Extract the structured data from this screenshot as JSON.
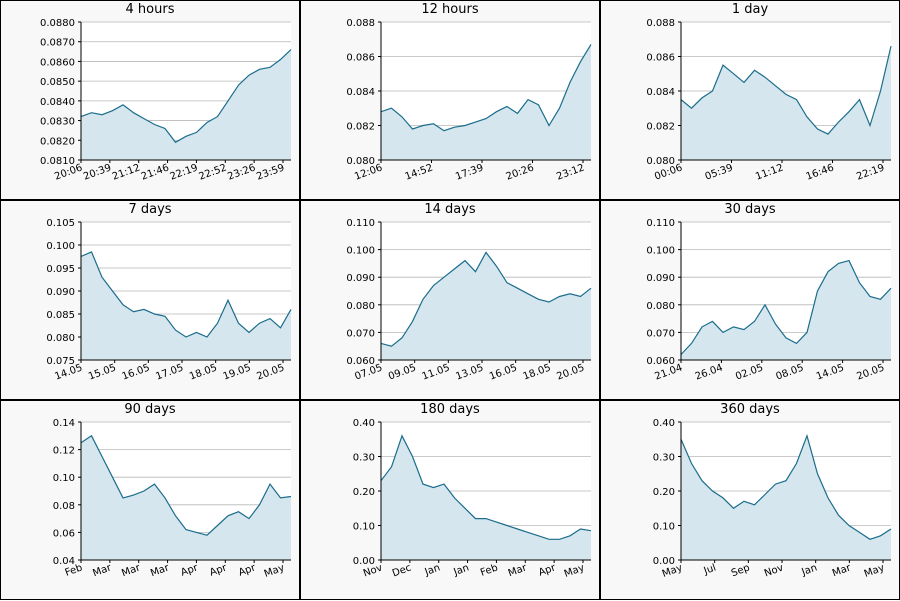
{
  "style": {
    "line_color": "#1a6d8c",
    "fill_color": "#d6e6ee",
    "grid_color": "#b8b8b8",
    "plot_bg": "#ffffff",
    "panel_bg": "#f8f8f8"
  },
  "chart_data": [
    {
      "type": "area",
      "title": "4 hours",
      "ylim": [
        0.081,
        0.088
      ],
      "yticks": [
        "0.0810",
        "0.0820",
        "0.0830",
        "0.0840",
        "0.0850",
        "0.0860",
        "0.0870",
        "0.0880"
      ],
      "xticks": [
        "20:06",
        "20:39",
        "21:12",
        "21:46",
        "22:19",
        "22:52",
        "23:26",
        "23:59"
      ],
      "x": [
        0,
        0.05,
        0.1,
        0.15,
        0.2,
        0.25,
        0.3,
        0.35,
        0.4,
        0.45,
        0.5,
        0.55,
        0.6,
        0.65,
        0.7,
        0.75,
        0.8,
        0.85,
        0.9,
        0.95,
        1
      ],
      "values": [
        0.0832,
        0.0834,
        0.0833,
        0.0835,
        0.0838,
        0.0834,
        0.0831,
        0.0828,
        0.0826,
        0.0819,
        0.0822,
        0.0824,
        0.0829,
        0.0832,
        0.084,
        0.0848,
        0.0853,
        0.0856,
        0.0857,
        0.0861,
        0.0866
      ]
    },
    {
      "type": "area",
      "title": "12 hours",
      "ylim": [
        0.08,
        0.088
      ],
      "yticks": [
        "0.080",
        "0.082",
        "0.084",
        "0.086",
        "0.088"
      ],
      "xticks": [
        "12:06",
        "14:52",
        "17:39",
        "20:26",
        "23:12"
      ],
      "x": [
        0,
        0.05,
        0.1,
        0.15,
        0.2,
        0.25,
        0.3,
        0.35,
        0.4,
        0.45,
        0.5,
        0.55,
        0.6,
        0.65,
        0.7,
        0.75,
        0.8,
        0.85,
        0.9,
        0.95,
        1
      ],
      "values": [
        0.0828,
        0.083,
        0.0825,
        0.0818,
        0.082,
        0.0821,
        0.0817,
        0.0819,
        0.082,
        0.0822,
        0.0824,
        0.0828,
        0.0831,
        0.0827,
        0.0835,
        0.0832,
        0.082,
        0.083,
        0.0845,
        0.0857,
        0.0867
      ]
    },
    {
      "type": "area",
      "title": "1 day",
      "ylim": [
        0.08,
        0.088
      ],
      "yticks": [
        "0.080",
        "0.082",
        "0.084",
        "0.086",
        "0.088"
      ],
      "xticks": [
        "00:06",
        "05:39",
        "11:12",
        "16:46",
        "22:19"
      ],
      "x": [
        0,
        0.05,
        0.1,
        0.15,
        0.2,
        0.25,
        0.3,
        0.35,
        0.4,
        0.45,
        0.5,
        0.55,
        0.6,
        0.65,
        0.7,
        0.75,
        0.8,
        0.85,
        0.9,
        0.95,
        1
      ],
      "values": [
        0.0835,
        0.083,
        0.0836,
        0.084,
        0.0855,
        0.085,
        0.0845,
        0.0852,
        0.0848,
        0.0843,
        0.0838,
        0.0835,
        0.0825,
        0.0818,
        0.0815,
        0.0822,
        0.0828,
        0.0835,
        0.082,
        0.084,
        0.0866
      ]
    },
    {
      "type": "area",
      "title": "7 days",
      "ylim": [
        0.075,
        0.105
      ],
      "yticks": [
        "0.075",
        "0.080",
        "0.085",
        "0.090",
        "0.095",
        "0.100",
        "0.105"
      ],
      "xticks": [
        "14.05",
        "15.05",
        "16.05",
        "17.05",
        "18.05",
        "19.05",
        "20.05"
      ],
      "x": [
        0,
        0.05,
        0.1,
        0.15,
        0.2,
        0.25,
        0.3,
        0.35,
        0.4,
        0.45,
        0.5,
        0.55,
        0.6,
        0.65,
        0.7,
        0.75,
        0.8,
        0.85,
        0.9,
        0.95,
        1
      ],
      "values": [
        0.0975,
        0.0985,
        0.093,
        0.09,
        0.087,
        0.0855,
        0.086,
        0.085,
        0.0845,
        0.0815,
        0.08,
        0.081,
        0.08,
        0.083,
        0.088,
        0.083,
        0.081,
        0.083,
        0.084,
        0.082,
        0.086
      ]
    },
    {
      "type": "area",
      "title": "14 days",
      "ylim": [
        0.06,
        0.11
      ],
      "yticks": [
        "0.060",
        "0.070",
        "0.080",
        "0.090",
        "0.100",
        "0.110"
      ],
      "xticks": [
        "07.05",
        "09.05",
        "11.05",
        "13.05",
        "16.05",
        "18.05",
        "20.05"
      ],
      "x": [
        0,
        0.05,
        0.1,
        0.15,
        0.2,
        0.25,
        0.3,
        0.35,
        0.4,
        0.45,
        0.5,
        0.55,
        0.6,
        0.65,
        0.7,
        0.75,
        0.8,
        0.85,
        0.9,
        0.95,
        1
      ],
      "values": [
        0.066,
        0.065,
        0.068,
        0.074,
        0.082,
        0.087,
        0.09,
        0.093,
        0.096,
        0.092,
        0.099,
        0.094,
        0.088,
        0.086,
        0.084,
        0.082,
        0.081,
        0.083,
        0.084,
        0.083,
        0.086
      ]
    },
    {
      "type": "area",
      "title": "30 days",
      "ylim": [
        0.06,
        0.11
      ],
      "yticks": [
        "0.060",
        "0.070",
        "0.080",
        "0.090",
        "0.100",
        "0.110"
      ],
      "xticks": [
        "21.04",
        "26.04",
        "02.05",
        "08.05",
        "14.05",
        "20.05"
      ],
      "x": [
        0,
        0.05,
        0.1,
        0.15,
        0.2,
        0.25,
        0.3,
        0.35,
        0.4,
        0.45,
        0.5,
        0.55,
        0.6,
        0.65,
        0.7,
        0.75,
        0.8,
        0.85,
        0.9,
        0.95,
        1
      ],
      "values": [
        0.062,
        0.066,
        0.072,
        0.074,
        0.07,
        0.072,
        0.071,
        0.074,
        0.08,
        0.073,
        0.068,
        0.066,
        0.07,
        0.085,
        0.092,
        0.095,
        0.096,
        0.088,
        0.083,
        0.082,
        0.086
      ]
    },
    {
      "type": "area",
      "title": "90 days",
      "ylim": [
        0.04,
        0.14
      ],
      "yticks": [
        "0.04",
        "0.06",
        "0.08",
        "0.10",
        "0.12",
        "0.14"
      ],
      "xticks": [
        "Feb",
        "Mar",
        "Mar",
        "Mar",
        "Apr",
        "Apr",
        "Apr",
        "May"
      ],
      "x": [
        0,
        0.05,
        0.1,
        0.15,
        0.2,
        0.25,
        0.3,
        0.35,
        0.4,
        0.45,
        0.5,
        0.55,
        0.6,
        0.65,
        0.7,
        0.75,
        0.8,
        0.85,
        0.9,
        0.95,
        1
      ],
      "values": [
        0.125,
        0.13,
        0.115,
        0.1,
        0.085,
        0.087,
        0.09,
        0.095,
        0.085,
        0.072,
        0.062,
        0.06,
        0.058,
        0.065,
        0.072,
        0.075,
        0.07,
        0.08,
        0.095,
        0.085,
        0.086
      ]
    },
    {
      "type": "area",
      "title": "180 days",
      "ylim": [
        0.0,
        0.4
      ],
      "yticks": [
        "0.00",
        "0.10",
        "0.20",
        "0.30",
        "0.40"
      ],
      "xticks": [
        "Nov",
        "Dec",
        "Jan",
        "Jan",
        "Feb",
        "Mar",
        "Apr",
        "May"
      ],
      "x": [
        0,
        0.05,
        0.1,
        0.15,
        0.2,
        0.25,
        0.3,
        0.35,
        0.4,
        0.45,
        0.5,
        0.55,
        0.6,
        0.65,
        0.7,
        0.75,
        0.8,
        0.85,
        0.9,
        0.95,
        1
      ],
      "values": [
        0.23,
        0.27,
        0.36,
        0.3,
        0.22,
        0.21,
        0.22,
        0.18,
        0.15,
        0.12,
        0.12,
        0.11,
        0.1,
        0.09,
        0.08,
        0.07,
        0.06,
        0.06,
        0.07,
        0.09,
        0.085
      ]
    },
    {
      "type": "area",
      "title": "360 days",
      "ylim": [
        0.0,
        0.4
      ],
      "yticks": [
        "0.00",
        "0.10",
        "0.20",
        "0.30",
        "0.40"
      ],
      "xticks": [
        "May",
        "Jul",
        "Sep",
        "Nov",
        "Jan",
        "Mar",
        "May"
      ],
      "x": [
        0,
        0.05,
        0.1,
        0.15,
        0.2,
        0.25,
        0.3,
        0.35,
        0.4,
        0.45,
        0.5,
        0.55,
        0.6,
        0.65,
        0.7,
        0.75,
        0.8,
        0.85,
        0.9,
        0.95,
        1
      ],
      "values": [
        0.35,
        0.28,
        0.23,
        0.2,
        0.18,
        0.15,
        0.17,
        0.16,
        0.19,
        0.22,
        0.23,
        0.28,
        0.36,
        0.25,
        0.18,
        0.13,
        0.1,
        0.08,
        0.06,
        0.07,
        0.09
      ]
    }
  ]
}
